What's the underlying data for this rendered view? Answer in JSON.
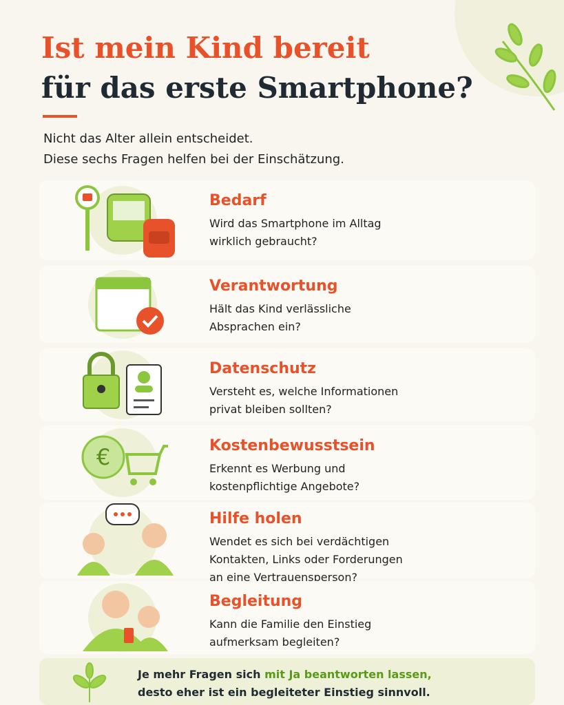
{
  "header": {
    "title_line1": "Ist mein Kind bereit",
    "title_line2": "für das erste Smartphone?",
    "intro": [
      "Nicht das Alter allein entscheidet.",
      "Diese sechs Fragen helfen bei der Einschätzung."
    ]
  },
  "items": [
    {
      "title": "Bedarf",
      "text": [
        "Wird das Smartphone im Alltag",
        "wirklich gebraucht?"
      ]
    },
    {
      "title": "Verantwortung",
      "text": [
        "Hält das Kind verlässliche",
        "Absprachen ein?"
      ]
    },
    {
      "title": "Datenschutz",
      "text": [
        "Versteht es, welche Informationen",
        "privat bleiben sollten?"
      ]
    },
    {
      "title": "Kostenbewusstsein",
      "text": [
        "Erkennt es Werbung und",
        "kostenpflichtige Angebote?"
      ]
    },
    {
      "title": "Hilfe holen",
      "text": [
        "Wendet es sich bei verdächtigen",
        "Kontakten, Links oder Forderungen",
        "an eine Vertrauensperson?"
      ]
    },
    {
      "title": "Begleitung",
      "text": [
        "Kann die Familie den Einstieg",
        "aufmerksam begleiten?"
      ]
    }
  ],
  "footer": {
    "line1_start": "Je mehr Fragen sich",
    "line1_highlight": "mit  Ja beantworten lassen,",
    "line2": "desto eher ist ein begleiteter Einstieg sinnvoll."
  }
}
